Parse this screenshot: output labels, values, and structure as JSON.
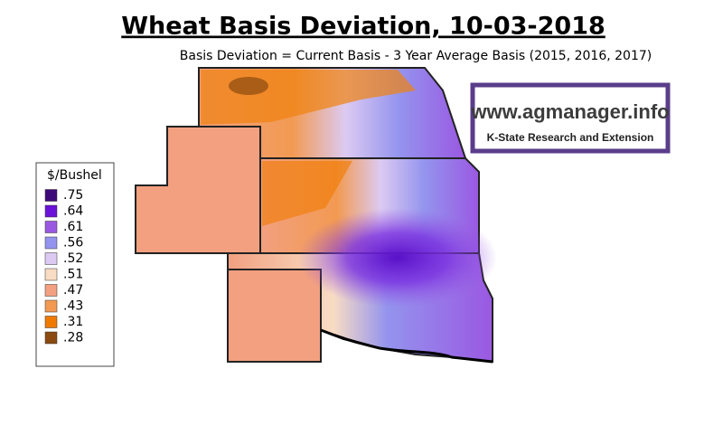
{
  "title": "Wheat Basis Deviation, 10-03-2018",
  "subtitle": "Basis Deviation = Current Basis - 3 Year Average Basis (2015, 2016, 2017)",
  "logo": {
    "url": "www.agmanager.info",
    "org": "K-State Research and Extension"
  },
  "legend": {
    "title": "$/Bushel",
    "items": [
      {
        "label": ".75",
        "color": "#3d0a7a"
      },
      {
        "label": ".64",
        "color": "#6a12d8"
      },
      {
        "label": ".61",
        "color": "#9a58e2"
      },
      {
        "label": ".56",
        "color": "#9494ee"
      },
      {
        "label": ".52",
        "color": "#dccaf2"
      },
      {
        "label": ".51",
        "color": "#f8dcc4"
      },
      {
        "label": ".47",
        "color": "#f2a080"
      },
      {
        "label": ".43",
        "color": "#f29a52"
      },
      {
        "label": ".31",
        "color": "#f07a00"
      },
      {
        "label": ".28",
        "color": "#8a4a10"
      }
    ]
  }
}
